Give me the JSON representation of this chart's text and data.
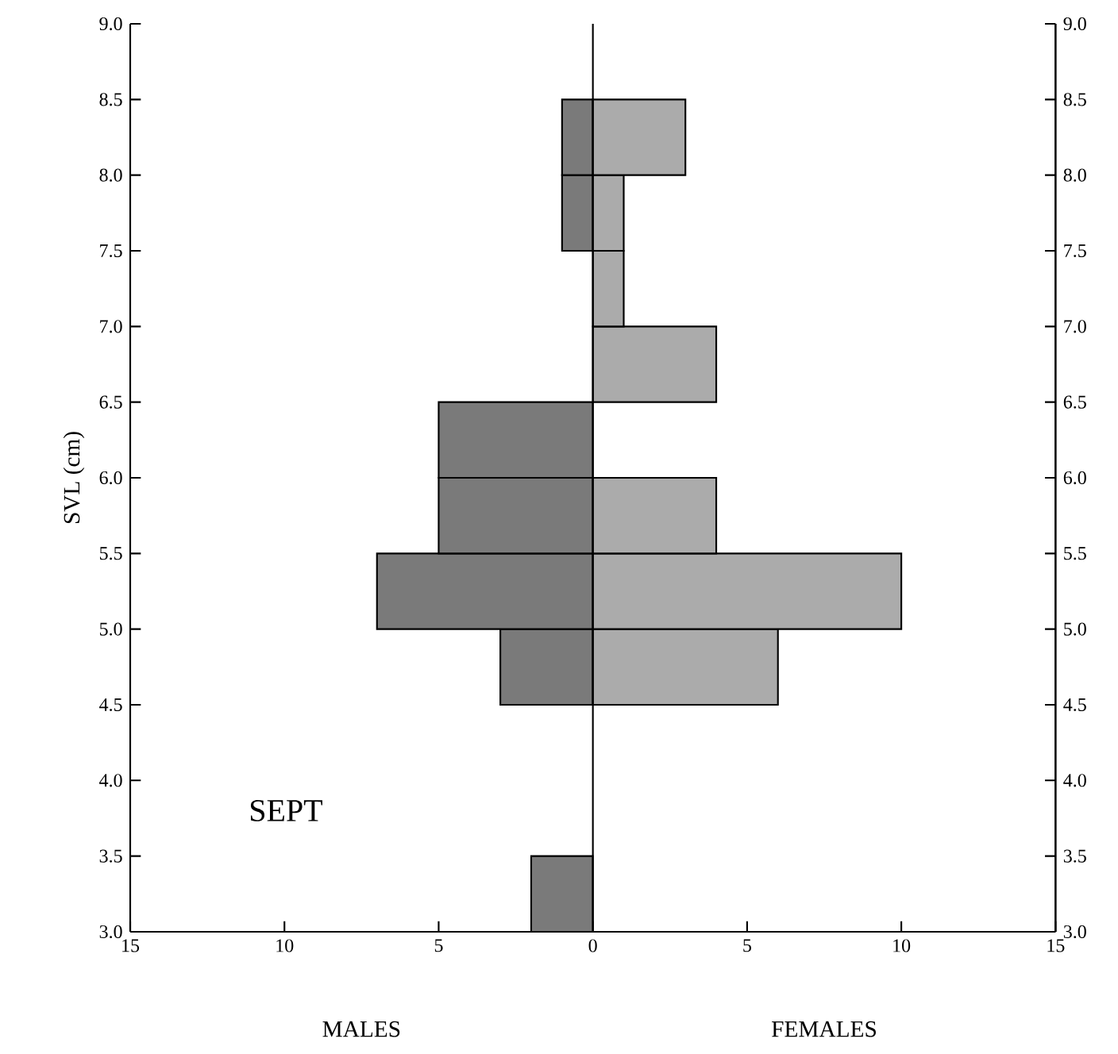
{
  "chart_data": {
    "type": "histogram",
    "orientation": "horizontal",
    "ylabel": "SVL (cm)",
    "annotations": [
      "SEPT",
      "MALES",
      "FEMALES"
    ],
    "bins": [
      3.0,
      3.5,
      4.0,
      4.5,
      5.0,
      5.5,
      6.0,
      6.5,
      7.0,
      7.5,
      8.0,
      8.5,
      9.0
    ],
    "series": [
      {
        "color": "#7a7a7a",
        "values": [
          -2,
          0,
          0,
          -3,
          -7,
          -5,
          -5,
          0,
          0,
          -1,
          -1,
          0
        ]
      },
      {
        "color": "#ababab",
        "values": [
          0,
          0,
          0,
          6,
          10,
          4,
          0,
          4,
          1,
          1,
          3,
          0
        ]
      }
    ],
    "xlim": [
      -15,
      15
    ],
    "xticks": [
      {
        "value": -15,
        "label": "15"
      },
      {
        "value": -10,
        "label": "10"
      },
      {
        "value": -5,
        "label": "5"
      },
      0,
      5,
      10,
      15
    ],
    "ylim": [
      3,
      9
    ],
    "yticks": [
      {
        "value": 3,
        "label": "3.0"
      },
      3.5,
      {
        "value": 4,
        "label": "4.0"
      },
      4.5,
      {
        "value": 5,
        "label": "5.0"
      },
      5.5,
      {
        "value": 6,
        "label": "6.0"
      },
      6.5,
      {
        "value": 7,
        "label": "7.0"
      },
      7.5,
      {
        "value": 8,
        "label": "8.0"
      },
      8.5,
      {
        "value": 9,
        "label": "9.0"
      }
    ],
    "y2lim": [
      3,
      9
    ],
    "y2ticks": [
      {
        "value": 3,
        "label": "3.0"
      },
      3.5,
      {
        "value": 4,
        "label": "4.0"
      },
      4.5,
      {
        "value": 5,
        "label": "5.0"
      },
      5.5,
      {
        "value": 6,
        "label": "6.0"
      },
      6.5,
      {
        "value": 7,
        "label": "7.0"
      },
      7.5,
      {
        "value": 8,
        "label": "8.0"
      },
      8.5,
      {
        "value": 9,
        "label": "9.0"
      }
    ],
    "ref_lines": [
      {
        "axis": "x",
        "value": 0
      }
    ],
    "grid": false
  }
}
